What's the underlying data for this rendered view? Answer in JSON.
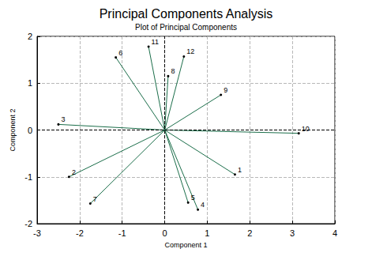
{
  "chart_data": {
    "type": "biplot",
    "title": "Principal Components Analysis",
    "subtitle": "Plot of Principal Components",
    "x_label": "Component 1",
    "y_label": "Component 2",
    "points": [
      {
        "label": "1",
        "x": 1.65,
        "y": -0.95
      },
      {
        "label": "2",
        "x": -2.25,
        "y": -1.0
      },
      {
        "label": "3",
        "x": -2.5,
        "y": 0.12
      },
      {
        "label": "4",
        "x": 0.78,
        "y": -1.7
      },
      {
        "label": "5",
        "x": 0.55,
        "y": -1.55
      },
      {
        "label": "6",
        "x": -1.15,
        "y": 1.55
      },
      {
        "label": "7",
        "x": -1.75,
        "y": -1.57
      },
      {
        "label": "8",
        "x": 0.08,
        "y": 1.15
      },
      {
        "label": "9",
        "x": 1.32,
        "y": 0.75
      },
      {
        "label": "10",
        "x": 3.15,
        "y": -0.07
      },
      {
        "label": "11",
        "x": -0.38,
        "y": 1.78
      },
      {
        "label": "12",
        "x": 0.45,
        "y": 1.57
      }
    ],
    "color": "#1b6e4a",
    "xlim": [
      -3,
      4
    ],
    "xticks": [
      -3,
      -2,
      -1,
      0,
      1,
      2,
      3,
      4
    ],
    "ylim": [
      -2,
      2
    ],
    "yticks": [
      -2,
      -1,
      0,
      1,
      2
    ],
    "grid": true
  }
}
